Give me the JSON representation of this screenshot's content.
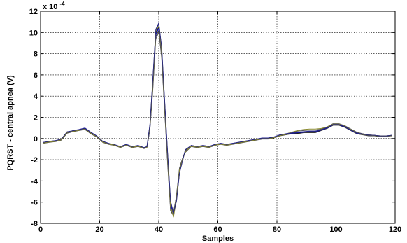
{
  "chart_data": {
    "type": "line",
    "title": "",
    "xlabel": "Samples",
    "ylabel": "PQRST - central apnea (V)",
    "y_multiplier_label": "x 10",
    "y_multiplier_exponent": "-4",
    "xlim": [
      0,
      120
    ],
    "ylim": [
      -8,
      12
    ],
    "x_ticks": [
      0,
      20,
      40,
      60,
      80,
      100,
      120
    ],
    "y_ticks": [
      -8,
      -6,
      -4,
      -2,
      0,
      2,
      4,
      6,
      8,
      10,
      12
    ],
    "x_tick_labels": [
      "0",
      "20",
      "40",
      "60",
      "80",
      "100",
      "120"
    ],
    "y_tick_labels": [
      "-8",
      "-6",
      "-4",
      "-2",
      "0",
      "2",
      "4",
      "6",
      "8",
      "10",
      "12"
    ],
    "grid": true,
    "legend": "none",
    "colors": [
      "#000000",
      "#1f1fa8",
      "#3a3a3a",
      "#0000cc",
      "#555555",
      "#8a8a30",
      "#2a2a7a"
    ],
    "x": [
      1,
      3,
      5,
      7,
      9,
      11,
      13,
      15,
      17,
      19,
      21,
      23,
      25,
      27,
      29,
      31,
      33,
      35,
      36,
      37,
      38,
      39,
      40,
      41,
      42,
      43,
      44,
      45,
      46,
      47,
      48,
      49,
      51,
      53,
      55,
      57,
      59,
      61,
      63,
      65,
      67,
      69,
      71,
      73,
      75,
      77,
      79,
      81,
      83,
      85,
      87,
      89,
      91,
      93,
      95,
      97,
      99,
      101,
      103,
      105,
      107,
      109,
      111,
      113,
      115,
      117,
      119
    ],
    "series": [
      {
        "values": [
          -0.4,
          -0.3,
          -0.25,
          -0.1,
          0.6,
          0.7,
          0.8,
          0.9,
          0.5,
          0.2,
          -0.3,
          -0.5,
          -0.6,
          -0.8,
          -0.6,
          -0.8,
          -0.7,
          -0.9,
          -0.8,
          1.0,
          5.0,
          10.0,
          10.5,
          8.0,
          3.0,
          -2.0,
          -6.5,
          -7.0,
          -5.5,
          -3.0,
          -2.0,
          -1.2,
          -0.7,
          -0.8,
          -0.7,
          -0.8,
          -0.6,
          -0.5,
          -0.6,
          -0.5,
          -0.4,
          -0.3,
          -0.2,
          -0.1,
          0.0,
          0.0,
          0.1,
          0.3,
          0.4,
          0.5,
          0.5,
          0.6,
          0.6,
          0.6,
          0.8,
          1.0,
          1.3,
          1.3,
          1.1,
          0.8,
          0.5,
          0.4,
          0.3,
          0.3,
          0.2,
          0.2,
          0.3
        ]
      },
      {
        "values": [
          -0.35,
          -0.3,
          -0.2,
          -0.05,
          0.55,
          0.75,
          0.85,
          1.0,
          0.6,
          0.25,
          -0.25,
          -0.45,
          -0.6,
          -0.75,
          -0.55,
          -0.75,
          -0.65,
          -0.85,
          -0.75,
          1.2,
          5.5,
          10.2,
          10.8,
          8.5,
          3.5,
          -1.5,
          -6.0,
          -7.2,
          -5.8,
          -3.2,
          -2.1,
          -1.1,
          -0.65,
          -0.75,
          -0.65,
          -0.75,
          -0.55,
          -0.45,
          -0.55,
          -0.45,
          -0.35,
          -0.25,
          -0.15,
          -0.05,
          0.05,
          0.05,
          0.15,
          0.35,
          0.45,
          0.55,
          0.6,
          0.65,
          0.7,
          0.7,
          0.85,
          1.05,
          1.35,
          1.35,
          1.15,
          0.85,
          0.55,
          0.45,
          0.35,
          0.3,
          0.25,
          0.25,
          0.3
        ]
      },
      {
        "values": [
          -0.45,
          -0.35,
          -0.3,
          -0.15,
          0.5,
          0.65,
          0.75,
          0.85,
          0.45,
          0.15,
          -0.35,
          -0.55,
          -0.65,
          -0.85,
          -0.65,
          -0.85,
          -0.75,
          -0.95,
          -0.85,
          0.8,
          4.6,
          9.6,
          10.2,
          7.6,
          2.6,
          -2.4,
          -6.8,
          -7.3,
          -5.3,
          -2.8,
          -1.9,
          -1.3,
          -0.75,
          -0.85,
          -0.75,
          -0.85,
          -0.65,
          -0.55,
          -0.65,
          -0.55,
          -0.45,
          -0.35,
          -0.25,
          -0.15,
          -0.05,
          -0.05,
          0.05,
          0.25,
          0.35,
          0.45,
          0.45,
          0.55,
          0.55,
          0.55,
          0.75,
          0.95,
          1.25,
          1.25,
          1.05,
          0.75,
          0.45,
          0.35,
          0.25,
          0.25,
          0.15,
          0.2,
          0.25
        ]
      },
      {
        "values": [
          -0.4,
          -0.3,
          -0.25,
          -0.1,
          0.6,
          0.7,
          0.8,
          0.95,
          0.55,
          0.2,
          -0.3,
          -0.5,
          -0.6,
          -0.8,
          -0.6,
          -0.8,
          -0.7,
          -0.9,
          -0.8,
          0.9,
          5.2,
          9.8,
          10.4,
          8.2,
          3.2,
          -1.8,
          -6.3,
          -7.1,
          -5.6,
          -3.1,
          -2.0,
          -1.2,
          -0.7,
          -0.8,
          -0.7,
          -0.8,
          -0.6,
          -0.5,
          -0.6,
          -0.5,
          -0.4,
          -0.3,
          -0.2,
          -0.1,
          0.0,
          0.0,
          0.1,
          0.3,
          0.45,
          0.5,
          0.55,
          0.6,
          0.65,
          0.65,
          0.8,
          1.0,
          1.3,
          1.3,
          1.1,
          0.8,
          0.5,
          0.4,
          0.3,
          0.3,
          0.2,
          0.2,
          0.3
        ]
      },
      {
        "values": [
          -0.38,
          -0.28,
          -0.22,
          -0.08,
          0.62,
          0.72,
          0.82,
          0.88,
          0.52,
          0.22,
          -0.28,
          -0.48,
          -0.58,
          -0.78,
          -0.58,
          -0.78,
          -0.68,
          -0.88,
          -0.78,
          1.1,
          4.8,
          9.4,
          10.0,
          7.8,
          2.8,
          -2.2,
          -6.6,
          -6.9,
          -5.4,
          -2.9,
          -1.95,
          -1.15,
          -0.68,
          -0.78,
          -0.68,
          -0.78,
          -0.58,
          -0.48,
          -0.58,
          -0.48,
          -0.38,
          -0.28,
          -0.18,
          -0.08,
          0.02,
          0.02,
          0.12,
          0.32,
          0.42,
          0.6,
          0.7,
          0.75,
          0.8,
          0.8,
          0.9,
          1.1,
          1.4,
          1.4,
          1.2,
          0.9,
          0.6,
          0.45,
          0.35,
          0.3,
          0.25,
          0.25,
          0.3
        ]
      },
      {
        "values": [
          -0.42,
          -0.32,
          -0.27,
          -0.12,
          0.58,
          0.68,
          0.78,
          0.92,
          0.5,
          0.18,
          -0.32,
          -0.52,
          -0.62,
          -0.82,
          -0.62,
          -0.82,
          -0.72,
          -0.92,
          -0.82,
          1.0,
          5.3,
          10.1,
          10.6,
          8.3,
          3.3,
          -1.7,
          -6.4,
          -7.4,
          -5.7,
          -3.0,
          -2.05,
          -1.25,
          -0.72,
          -0.82,
          -0.72,
          -0.82,
          -0.62,
          -0.52,
          -0.62,
          -0.52,
          -0.42,
          -0.32,
          -0.22,
          -0.12,
          -0.02,
          -0.02,
          0.08,
          0.28,
          0.4,
          0.6,
          0.75,
          0.85,
          0.9,
          0.9,
          0.95,
          1.1,
          1.35,
          1.35,
          1.15,
          0.85,
          0.55,
          0.4,
          0.3,
          0.28,
          0.22,
          0.22,
          0.28
        ]
      },
      {
        "values": [
          -0.36,
          -0.26,
          -0.2,
          -0.06,
          0.64,
          0.74,
          0.84,
          0.96,
          0.58,
          0.24,
          -0.26,
          -0.46,
          -0.56,
          -0.76,
          -0.56,
          -0.76,
          -0.66,
          -0.86,
          -0.76,
          1.3,
          5.6,
          10.3,
          10.9,
          8.6,
          3.6,
          -1.4,
          -5.9,
          -7.0,
          -5.9,
          -3.3,
          -2.15,
          -1.05,
          -0.66,
          -0.76,
          -0.66,
          -0.76,
          -0.56,
          -0.46,
          -0.56,
          -0.46,
          -0.36,
          -0.26,
          -0.16,
          -0.06,
          0.04,
          0.04,
          0.14,
          0.34,
          0.44,
          0.52,
          0.58,
          0.62,
          0.66,
          0.68,
          0.82,
          1.02,
          1.32,
          1.32,
          1.12,
          0.82,
          0.52,
          0.42,
          0.32,
          0.3,
          0.24,
          0.24,
          0.32
        ]
      }
    ]
  }
}
